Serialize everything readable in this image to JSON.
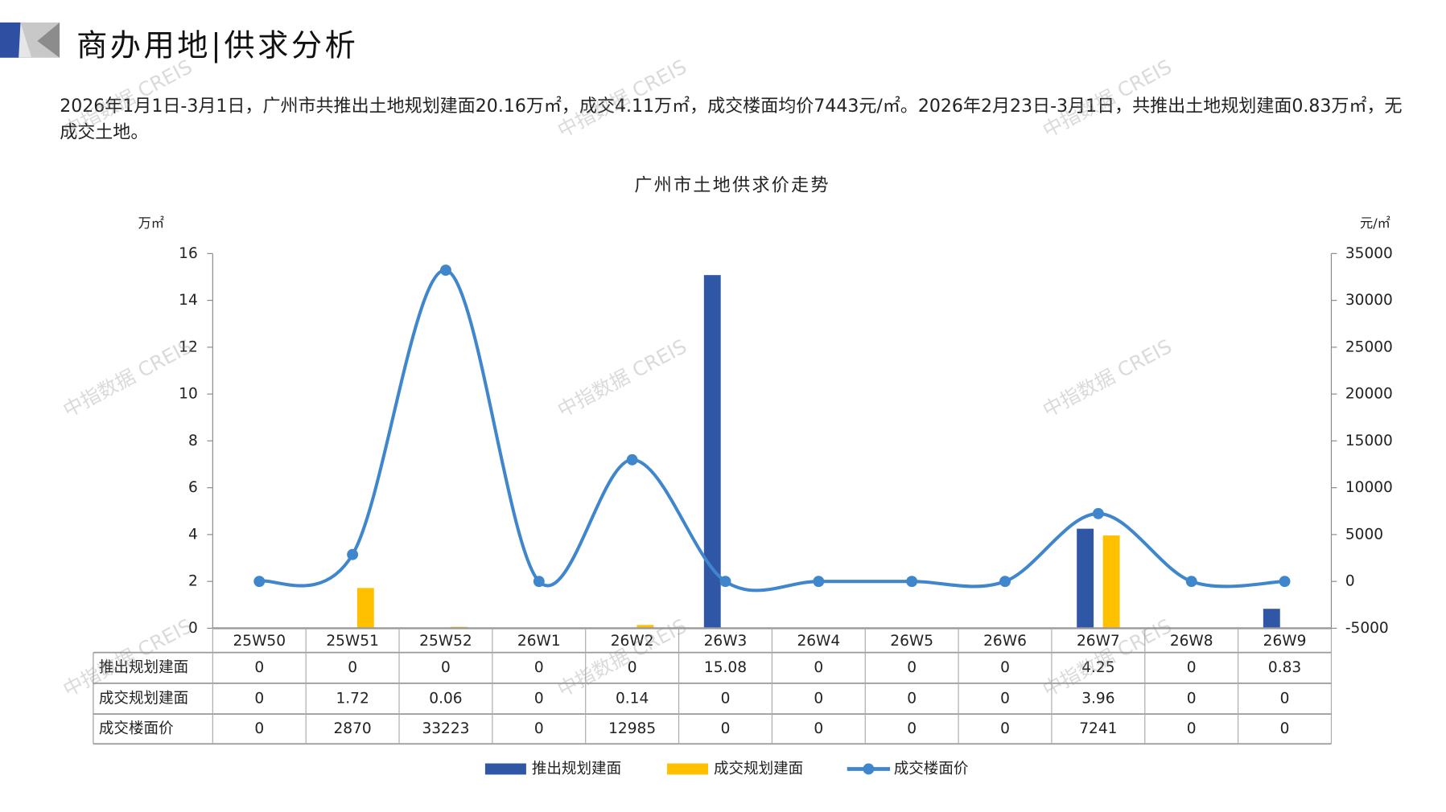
{
  "header": {
    "title": "商办用地|供求分析"
  },
  "description": "2026年1月1日-3月1日，广州市共推出土地规划建面20.16万㎡，成交4.11万㎡，成交楼面均价7443元/㎡。2026年2月23日-3月1日，共推出土地规划建面0.83万㎡，无成交土地。",
  "watermark": "中指数据 CREIS",
  "chart_data": {
    "type": "bar+line",
    "title": "广州市土地供求价走势",
    "ylabel_left": "万㎡",
    "ylabel_right": "元/㎡",
    "ylim_left": [
      0,
      16
    ],
    "ylim_right": [
      -5000,
      35000
    ],
    "yticks_left": [
      "0",
      "2",
      "4",
      "6",
      "8",
      "10",
      "12",
      "14",
      "16"
    ],
    "yticks_right": [
      "-5000",
      "0",
      "5000",
      "10000",
      "15000",
      "20000",
      "25000",
      "30000",
      "35000"
    ],
    "categories": [
      "25W50",
      "25W51",
      "25W52",
      "26W1",
      "26W2",
      "26W3",
      "26W4",
      "26W5",
      "26W6",
      "26W7",
      "26W8",
      "26W9"
    ],
    "series": [
      {
        "name": "推出规划建面",
        "type": "bar",
        "axis": "left",
        "color": "#2f57a6",
        "values": [
          0,
          0,
          0,
          0,
          0,
          15.08,
          0,
          0,
          0,
          4.25,
          0,
          0.83
        ],
        "labels": [
          "0",
          "0",
          "0",
          "0",
          "0",
          "15.08",
          "0",
          "0",
          "0",
          "4.25",
          "0",
          "0.83"
        ]
      },
      {
        "name": "成交规划建面",
        "type": "bar",
        "axis": "left",
        "color": "#ffc000",
        "values": [
          0,
          1.72,
          0.06,
          0,
          0.14,
          0,
          0,
          0,
          0,
          3.96,
          0,
          0
        ],
        "labels": [
          "0",
          "1.72",
          "0.06",
          "0",
          "0.14",
          "0",
          "0",
          "0",
          "0",
          "3.96",
          "0",
          "0"
        ]
      },
      {
        "name": "成交楼面价",
        "type": "line",
        "axis": "right",
        "color": "#3f86cc",
        "values": [
          0,
          2870,
          33223,
          0,
          12985,
          0,
          0,
          0,
          0,
          7241,
          0,
          0
        ],
        "labels": [
          "0",
          "2870",
          "33223",
          "0",
          "12985",
          "0",
          "0",
          "0",
          "0",
          "7241",
          "0",
          "0"
        ]
      }
    ],
    "legend": "bottom",
    "data_table": true
  }
}
